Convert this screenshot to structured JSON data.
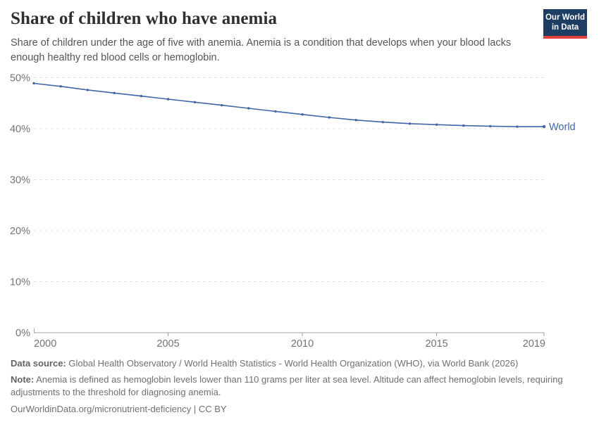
{
  "header": {
    "title": "Share of children who have anemia",
    "subtitle": "Share of children under the age of five with anemia. Anemia is a condition that develops when your blood lacks enough healthy red blood cells or hemoglobin.",
    "logo": {
      "line1": "Our World",
      "line2": "in Data",
      "bg_color": "#1d3d63",
      "accent_color": "#e0413a"
    }
  },
  "chart_data": {
    "type": "line",
    "title": "Share of children who have anemia",
    "x": [
      2000,
      2001,
      2002,
      2003,
      2004,
      2005,
      2006,
      2007,
      2008,
      2009,
      2010,
      2011,
      2012,
      2013,
      2014,
      2015,
      2016,
      2017,
      2018,
      2019
    ],
    "series": [
      {
        "name": "World",
        "color": "#4165a8",
        "values": [
          48.9,
          48.3,
          47.6,
          47.0,
          46.4,
          45.8,
          45.2,
          44.6,
          44.0,
          43.4,
          42.8,
          42.2,
          41.7,
          41.3,
          41.0,
          40.8,
          40.6,
          40.5,
          40.4,
          40.4
        ]
      }
    ],
    "x_ticks": [
      {
        "value": 2000,
        "label": "2000"
      },
      {
        "value": 2005,
        "label": "2005"
      },
      {
        "value": 2010,
        "label": "2010"
      },
      {
        "value": 2015,
        "label": "2015"
      },
      {
        "value": 2019,
        "label": "2019"
      }
    ],
    "y_ticks": [
      {
        "value": 0,
        "label": "0%"
      },
      {
        "value": 10,
        "label": "10%"
      },
      {
        "value": 20,
        "label": "20%"
      },
      {
        "value": 30,
        "label": "30%"
      },
      {
        "value": 40,
        "label": "40%"
      },
      {
        "value": 50,
        "label": "50%"
      }
    ],
    "xlim": [
      2000,
      2019
    ],
    "ylim": [
      0,
      50
    ],
    "y_unit": "%",
    "grid": "horizontal-dashed",
    "legend": "line-end-label",
    "colors": {
      "gridline": "#dcdcdc",
      "axis": "#a1a1a1",
      "tick_label": "#737373"
    }
  },
  "footer": {
    "data_source_label": "Data source:",
    "data_source_text": "Global Health Observatory / World Health Statistics - World Health Organization (WHO), via World Bank (2026)",
    "note_label": "Note:",
    "note_text": "Anemia is defined as hemoglobin levels lower than 110 grams per liter at sea level. Altitude can affect hemoglobin levels, requiring adjustments to the threshold for diagnosing anemia.",
    "citation": "OurWorldinData.org/micronutrient-deficiency | CC BY"
  }
}
